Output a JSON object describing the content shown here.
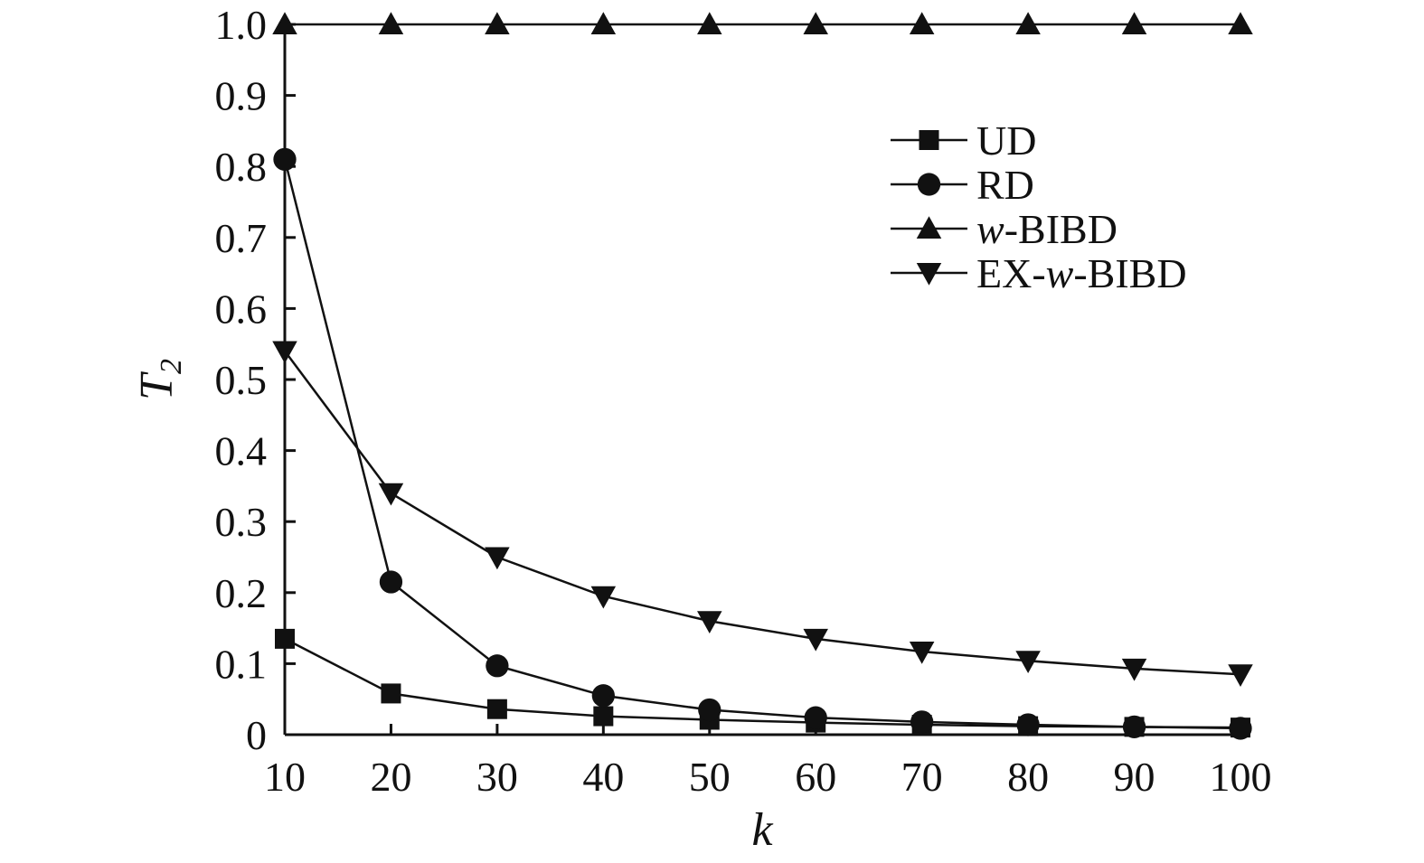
{
  "chart_data": {
    "type": "line",
    "xlabel": "k",
    "ylabel_main": "T",
    "ylabel_sub": "2",
    "x": [
      10,
      20,
      30,
      40,
      50,
      60,
      70,
      80,
      90,
      100
    ],
    "xlim": [
      10,
      100
    ],
    "ylim": [
      0,
      1.0
    ],
    "x_ticks": [
      "10",
      "20",
      "30",
      "40",
      "50",
      "60",
      "70",
      "80",
      "90",
      "100"
    ],
    "y_ticks": [
      {
        "value": 0,
        "label": "0"
      },
      {
        "value": 0.1,
        "label": "0.1"
      },
      {
        "value": 0.2,
        "label": "0.2"
      },
      {
        "value": 0.3,
        "label": "0.3"
      },
      {
        "value": 0.4,
        "label": "0.4"
      },
      {
        "value": 0.5,
        "label": "0.5"
      },
      {
        "value": 0.6,
        "label": "0.6"
      },
      {
        "value": 0.7,
        "label": "0.7"
      },
      {
        "value": 0.8,
        "label": "0.8"
      },
      {
        "value": 0.9,
        "label": "0.9"
      },
      {
        "value": 1.0,
        "label": "1.0"
      }
    ],
    "grid": false,
    "legend_position": "top-right",
    "series": [
      {
        "name": "UD",
        "marker": "square",
        "values": [
          0.135,
          0.058,
          0.036,
          0.026,
          0.021,
          0.017,
          0.014,
          0.012,
          0.011,
          0.01
        ]
      },
      {
        "name": "RD",
        "marker": "circle",
        "values": [
          0.81,
          0.215,
          0.097,
          0.055,
          0.035,
          0.024,
          0.018,
          0.014,
          0.011,
          0.009
        ]
      },
      {
        "name": "w-BIBD",
        "legend_parts": [
          {
            "text": "w",
            "italic": true
          },
          {
            "text": "-BIBD",
            "italic": false
          }
        ],
        "marker": "triangle-up",
        "values": [
          1.0,
          1.0,
          1.0,
          1.0,
          1.0,
          1.0,
          1.0,
          1.0,
          1.0,
          1.0
        ]
      },
      {
        "name": "EX-w-BIBD",
        "legend_parts": [
          {
            "text": "EX-",
            "italic": false
          },
          {
            "text": "w",
            "italic": true
          },
          {
            "text": "-BIBD",
            "italic": false
          }
        ],
        "marker": "triangle-down",
        "values": [
          0.54,
          0.34,
          0.25,
          0.195,
          0.16,
          0.135,
          0.117,
          0.104,
          0.093,
          0.085
        ]
      }
    ]
  }
}
